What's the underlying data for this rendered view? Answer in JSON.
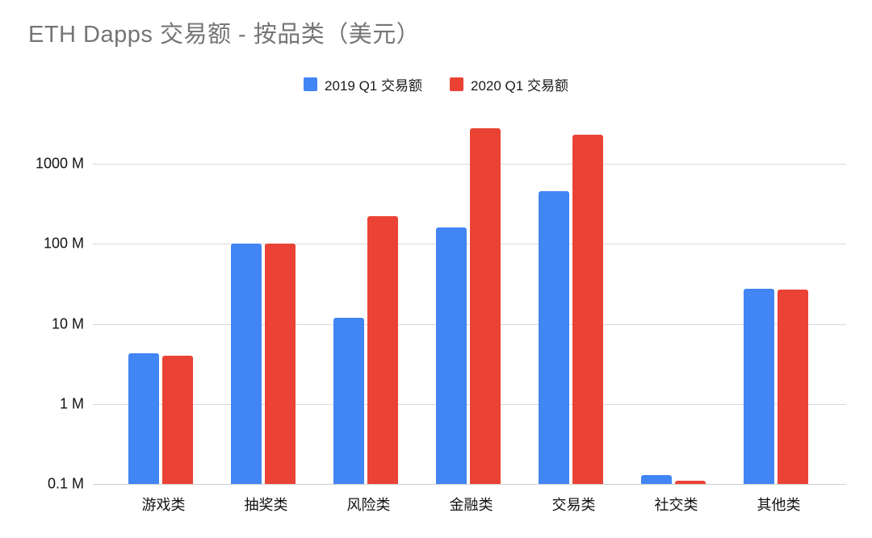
{
  "title": "ETH Dapps 交易额 - 按品类（美元）",
  "colors": {
    "series_2019": "#4285f4",
    "series_2020": "#ea4335",
    "title_text": "#757575",
    "axis_text": "#111111",
    "gridline": "#d9d9d9",
    "background": "#ffffff"
  },
  "legend": {
    "items": [
      {
        "label": "2019 Q1 交易额",
        "color": "#4285f4"
      },
      {
        "label": "2020 Q1 交易额",
        "color": "#ea4335"
      }
    ]
  },
  "chart_data": {
    "type": "bar",
    "scale_y": "log10",
    "unit": "M (million USD)",
    "title": "ETH Dapps 交易额 - 按品类（美元）",
    "categories": [
      "游戏类",
      "抽奖类",
      "风险类",
      "金融类",
      "交易类",
      "社交类",
      "其他类"
    ],
    "series": [
      {
        "name": "2019 Q1 交易额",
        "color": "#4285f4",
        "values": [
          4.3,
          100,
          12,
          160,
          450,
          0.13,
          27.5
        ]
      },
      {
        "name": "2020 Q1 交易额",
        "color": "#ea4335",
        "values": [
          4.0,
          100,
          220,
          2800,
          2300,
          0.11,
          27
        ]
      }
    ],
    "y_ticks": [
      {
        "label": "0.1 M",
        "value": 0.1
      },
      {
        "label": "1 M",
        "value": 1
      },
      {
        "label": "10 M",
        "value": 10
      },
      {
        "label": "100 M",
        "value": 100
      },
      {
        "label": "1000 M",
        "value": 1000
      }
    ],
    "ylim": [
      0.1,
      4500
    ],
    "grid": true,
    "legend_position": "top-center"
  }
}
